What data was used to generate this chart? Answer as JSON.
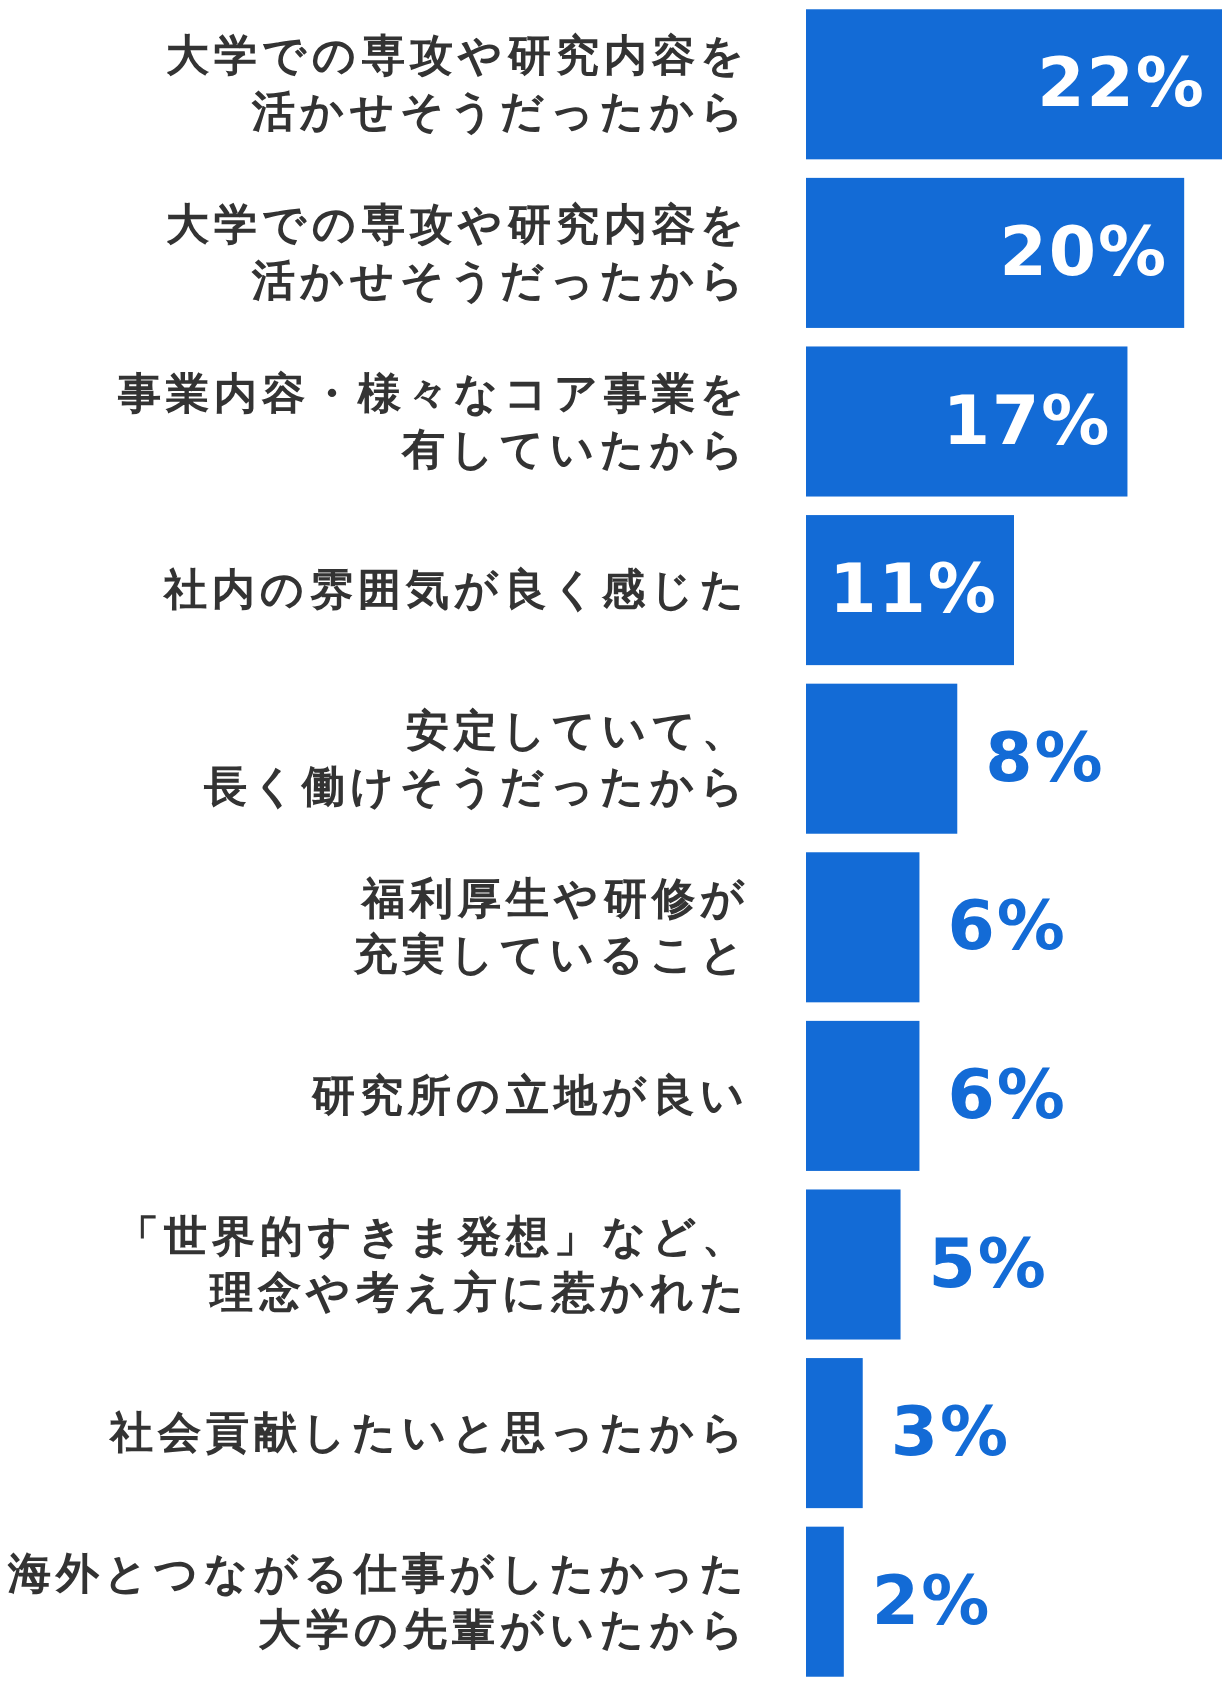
{
  "chart_data": {
    "type": "bar",
    "orientation": "horizontal",
    "categories": [
      "大学での専攻や研究内容を活かせそうだったから",
      "大学での専攻や研究内容を活かせそうだったから",
      "事業内容・様々なコア事業を有していたから",
      "社内の雰囲気が良く感じた",
      "安定していて、長く働けそうだったから",
      "福利厚生や研修が充実していること",
      "研究所の立地が良い",
      "「世界的すきま発想」など、理念や考え方に惹かれた",
      "社会貢献したいと思ったから",
      "海外とつながる仕事がしたかった大学の先輩がいたから"
    ],
    "values": [
      22,
      20,
      17,
      11,
      8,
      6,
      6,
      5,
      3,
      2
    ],
    "value_labels": [
      "22%",
      "20%",
      "17%",
      "11%",
      "8%",
      "6%",
      "6%",
      "5%",
      "3%",
      "2%"
    ],
    "color": "#136bd6"
  }
}
